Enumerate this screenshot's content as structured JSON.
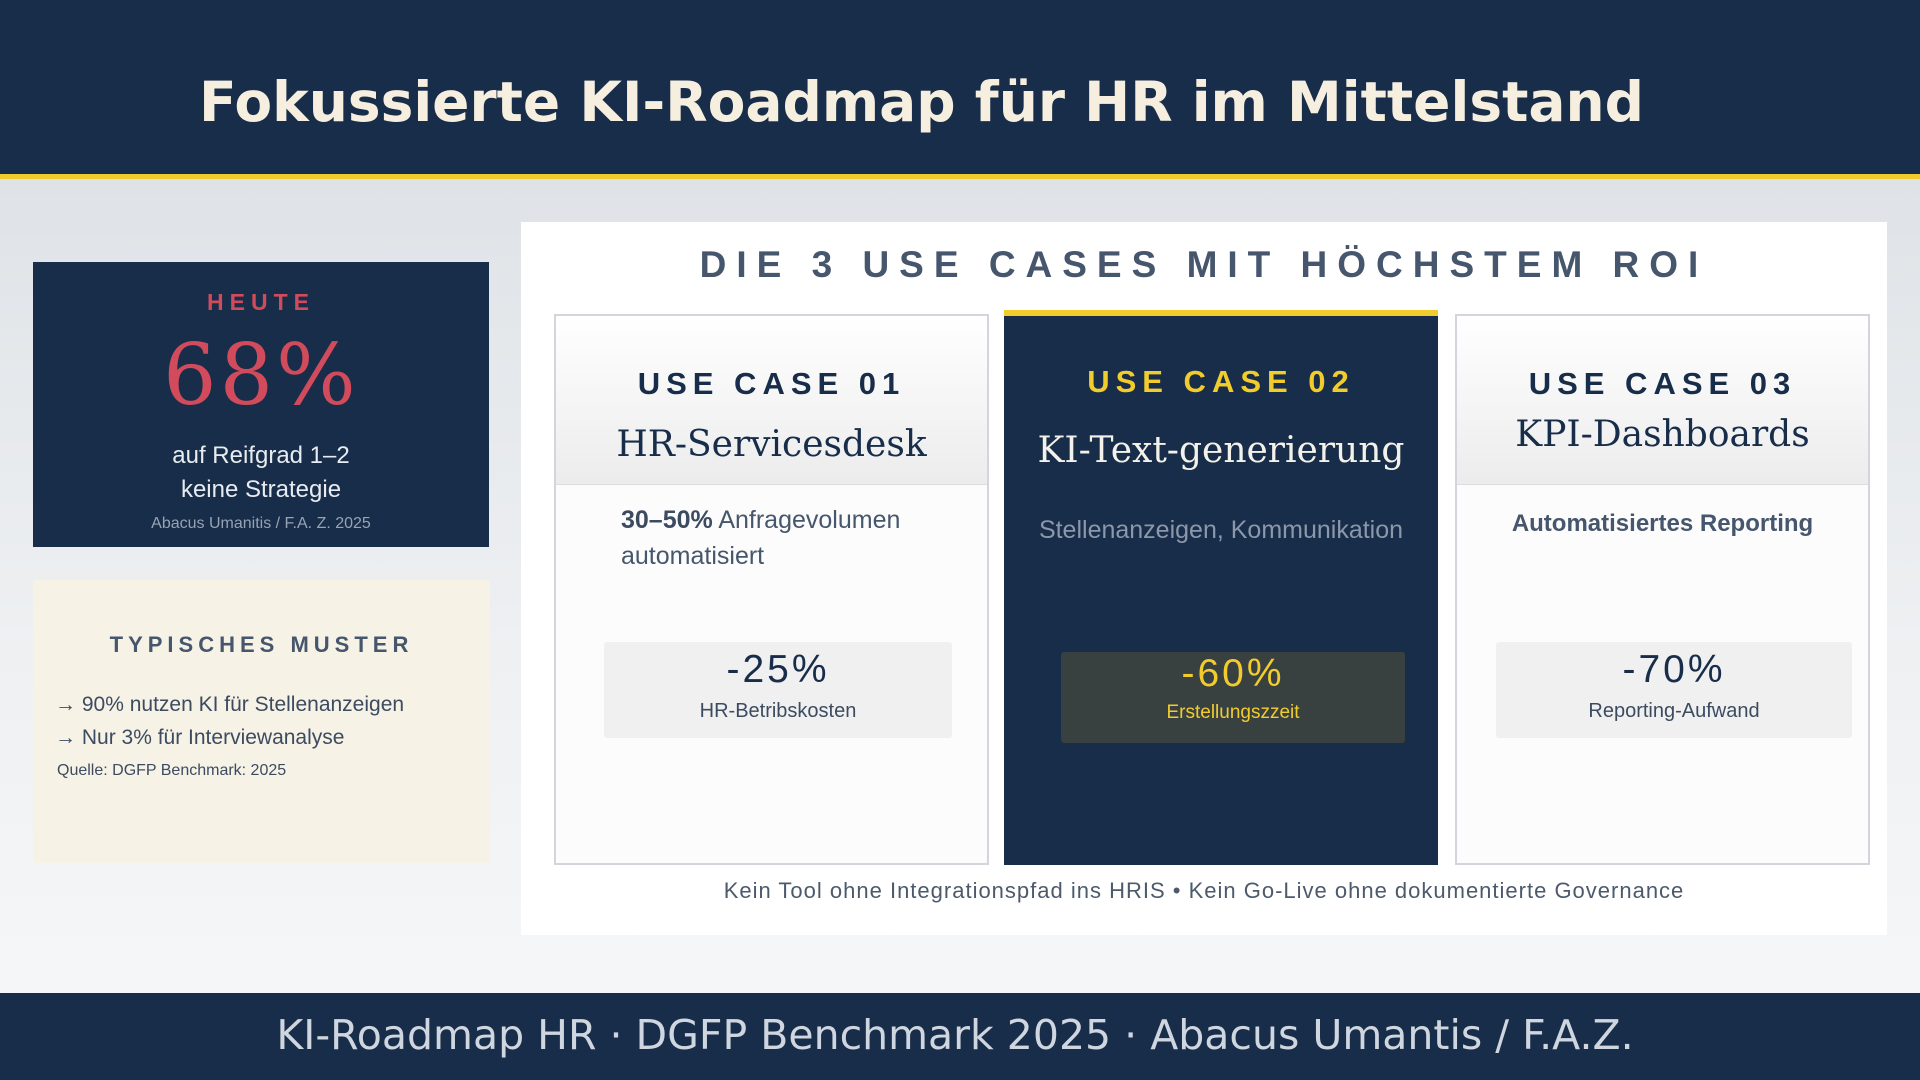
{
  "header": {
    "title": "Fokussierte KI-Roadmap für HR im Mittelstand"
  },
  "today_card": {
    "kicker": "HEUTE",
    "value": "68%",
    "line1": "auf Reifgrad 1–2",
    "line2": "keine Strategie",
    "source": "Abacus Umanitis / F.A. Z. 2025"
  },
  "pattern_card": {
    "kicker": "TYPISCHES MUSTER",
    "items": [
      {
        "arrow": "→",
        "text": "90% nutzen KI für Stellenanzeigen"
      },
      {
        "arrow": "→",
        "text": "Nur 3% für Interviewanalyse"
      }
    ],
    "source": "Quelle: DGFP Benchmark: 2025"
  },
  "panel": {
    "heading": "DIE 3 USE CASES MIT HÖCHSTEM ROI",
    "use_cases": [
      {
        "kicker": "USE CASE 01",
        "name": "HR-Servicesdesk",
        "desc_bold": "30–50%",
        "desc_rest": " Anfragevolumen",
        "desc_line2": "automatisiert",
        "metric_value": "-25%",
        "metric_label": "HR-Betribskosten"
      },
      {
        "kicker": "USE CASE 02",
        "name": "KI-Text-generierung",
        "desc": "Stellenanzeigen, Kommunikation",
        "metric_value": "-60%",
        "metric_label": "Erstellungszzeit"
      },
      {
        "kicker": "USE CASE 03",
        "name": "KPI-Dashboards",
        "desc": "Automatisiertes Reporting",
        "metric_value": "-70%",
        "metric_label": "Reporting-Aufwand"
      }
    ],
    "note": "Kein Tool ohne Integrationspfad ins HRIS • Kein Go-Live ohne dokumentierte Governance"
  },
  "footer": {
    "text": "KI-Roadmap HR · DGFP Benchmark 2025 · Abacus Umantis / F.A.Z."
  },
  "colors": {
    "navy": "#172d49",
    "gold": "#f2cc2c",
    "accent_red": "#d14b5c",
    "cream": "#f6f2e6"
  }
}
